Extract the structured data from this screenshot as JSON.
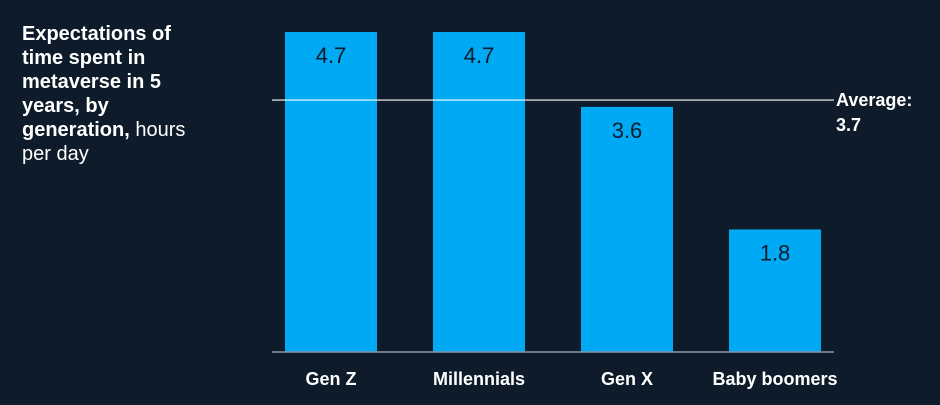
{
  "title": {
    "main": "Expectations of time spent in metaverse in 5 years, by generation,",
    "unit": "hours per day"
  },
  "colors": {
    "background": "#0d1b2a",
    "bar": "#00a9f4",
    "text": "#ffffff",
    "value_text": "#0d1b2a"
  },
  "chart_data": {
    "type": "bar",
    "categories": [
      "Gen Z",
      "Millennials",
      "Gen X",
      "Baby boomers"
    ],
    "values": [
      4.7,
      4.7,
      3.6,
      1.8
    ],
    "value_labels": [
      "4.7",
      "4.7",
      "3.6",
      "1.8"
    ],
    "average": {
      "value": 3.7,
      "label_line1": "Average:",
      "label_line2": "3.7"
    },
    "xlabel": "",
    "ylabel": "",
    "ylim": [
      0,
      4.7
    ],
    "grid": false,
    "legend": "none"
  }
}
